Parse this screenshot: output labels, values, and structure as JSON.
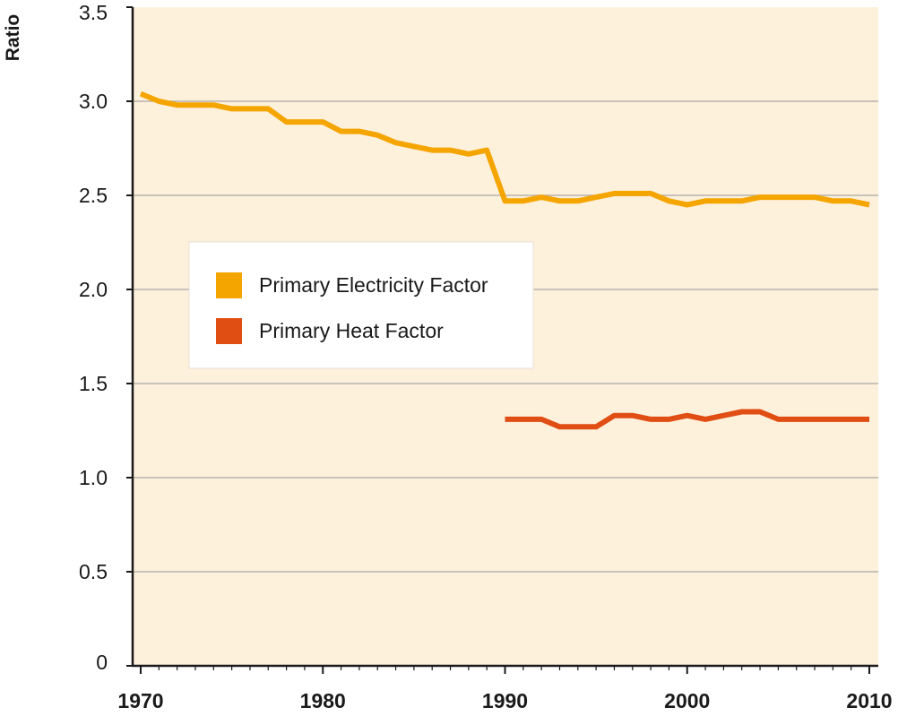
{
  "chart_data": {
    "type": "line",
    "ylabel": "Ratio",
    "xlabel": "",
    "xlim": [
      1970,
      2010
    ],
    "ylim": [
      0,
      3.5
    ],
    "x_ticks": [
      "1970",
      "1980",
      "1990",
      "2000",
      "2010"
    ],
    "y_ticks": [
      "0",
      "0.5",
      "1.0",
      "1.5",
      "2.0",
      "2.5",
      "3.0",
      "3.5"
    ],
    "grid": true,
    "legend_position": "center-left",
    "colors": {
      "plot_background": "#fdf1dc",
      "gridline": "#b7b2ab",
      "axis": "#1a1a1a"
    },
    "series": [
      {
        "name": "Primary Electricity Factor",
        "color": "#f5a500",
        "x": [
          1970,
          1971,
          1972,
          1973,
          1974,
          1975,
          1976,
          1977,
          1978,
          1979,
          1980,
          1981,
          1982,
          1983,
          1984,
          1985,
          1986,
          1987,
          1988,
          1989,
          1990,
          1991,
          1992,
          1993,
          1994,
          1995,
          1996,
          1997,
          1998,
          1999,
          2000,
          2001,
          2002,
          2003,
          2004,
          2005,
          2006,
          2007,
          2008,
          2009,
          2010
        ],
        "values": [
          3.04,
          3.0,
          2.98,
          2.98,
          2.98,
          2.96,
          2.96,
          2.96,
          2.89,
          2.89,
          2.89,
          2.84,
          2.84,
          2.82,
          2.78,
          2.76,
          2.74,
          2.74,
          2.72,
          2.74,
          2.47,
          2.47,
          2.49,
          2.47,
          2.47,
          2.49,
          2.51,
          2.51,
          2.51,
          2.47,
          2.45,
          2.47,
          2.47,
          2.47,
          2.49,
          2.49,
          2.49,
          2.49,
          2.47,
          2.47,
          2.45
        ]
      },
      {
        "name": "Primary Heat Factor",
        "color": "#e04e14",
        "x": [
          1990,
          1991,
          1992,
          1993,
          1994,
          1995,
          1996,
          1997,
          1998,
          1999,
          2000,
          2001,
          2002,
          2003,
          2004,
          2005,
          2006,
          2007,
          2008,
          2009,
          2010
        ],
        "values": [
          1.31,
          1.31,
          1.31,
          1.27,
          1.27,
          1.27,
          1.33,
          1.33,
          1.31,
          1.31,
          1.33,
          1.31,
          1.33,
          1.35,
          1.35,
          1.31,
          1.31,
          1.31,
          1.31,
          1.31,
          1.31
        ]
      }
    ]
  }
}
